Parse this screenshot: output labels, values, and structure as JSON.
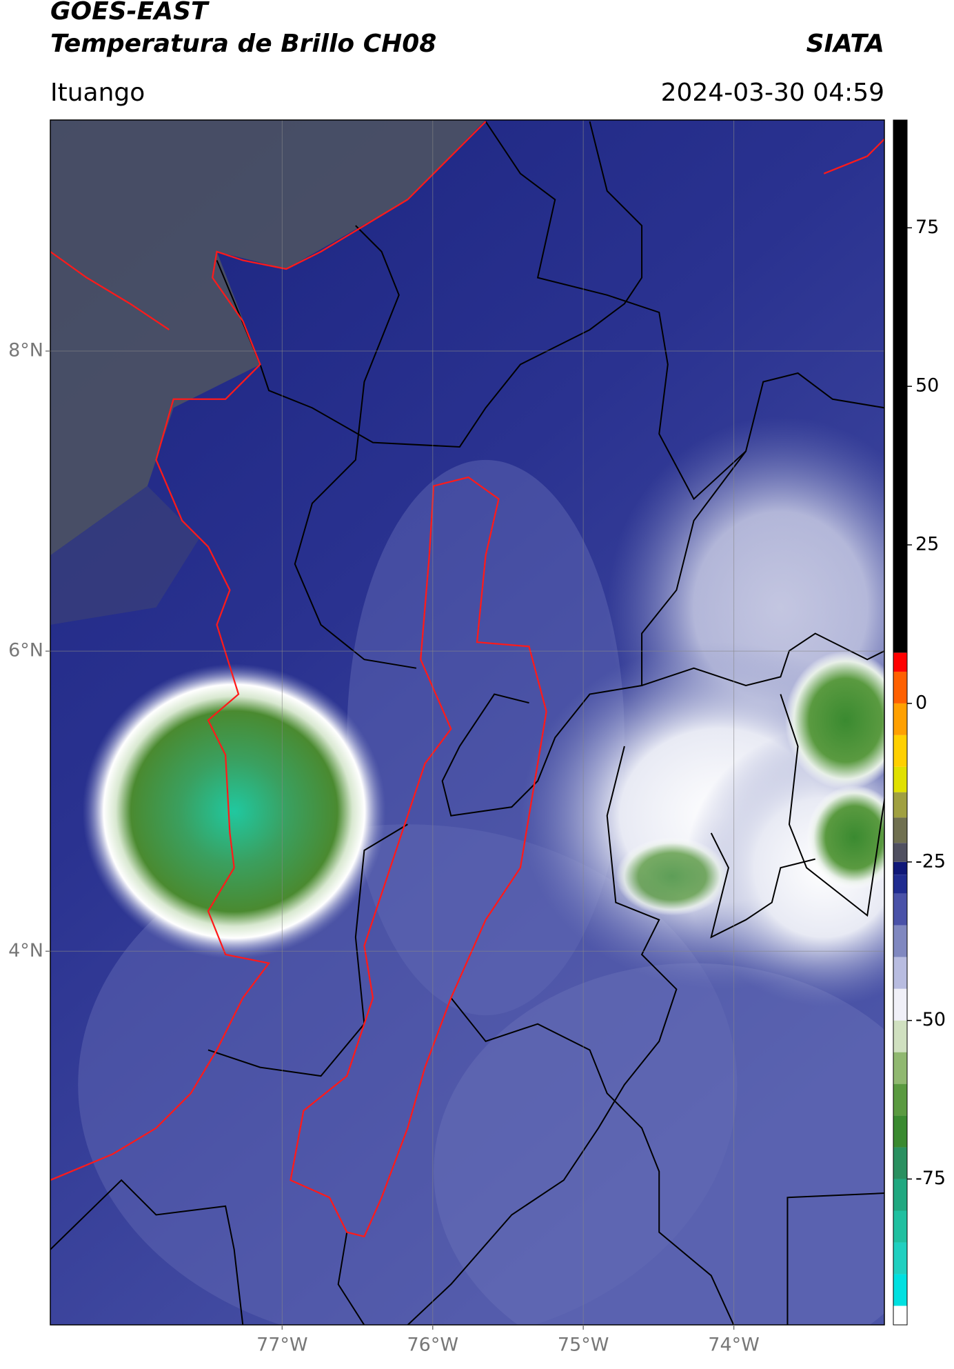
{
  "chart_data": {
    "type": "map",
    "title": "GOES-EAST",
    "subtitle": "Temperatura de Brillo CH08",
    "source": "SIATA",
    "location": "Ituango",
    "timestamp": "2024-03-30 04:59",
    "xlim": [
      -78.54,
      -73.0
    ],
    "ylim": [
      1.51,
      9.54
    ],
    "xticks": [
      {
        "value": -77,
        "label": "77°W"
      },
      {
        "value": -76,
        "label": "76°W"
      },
      {
        "value": -75,
        "label": "75°W"
      },
      {
        "value": -74,
        "label": "74°W"
      }
    ],
    "yticks": [
      {
        "value": 4,
        "label": "4°N"
      },
      {
        "value": 6,
        "label": "6°N"
      },
      {
        "value": 8,
        "label": "8°N"
      }
    ],
    "grid": true,
    "colorbar": {
      "lim": [
        -98,
        92
      ],
      "ticks": [
        -75,
        -50,
        -25,
        0,
        25,
        50,
        75
      ],
      "levels": [
        -98,
        -95,
        -90,
        -85,
        -80,
        -75,
        -70,
        -65,
        -60,
        -55,
        -50,
        -45,
        -40,
        -35,
        -30,
        -27,
        -25,
        -22,
        -18,
        -14,
        -10,
        -5,
        0,
        5,
        8,
        92
      ],
      "colors": [
        "#ffffff",
        "#00e0e0",
        "#20d0c0",
        "#20c0a0",
        "#20a880",
        "#2a9060",
        "#3a8a30",
        "#5a9a40",
        "#90b870",
        "#d0e0c0",
        "#f0f0f8",
        "#b8bce0",
        "#8088c0",
        "#4a52a8",
        "#202c90",
        "#101878",
        "#505060",
        "#707050",
        "#a0a040",
        "#e0e000",
        "#ffd000",
        "#ffa000",
        "#ff6000",
        "#ff0000",
        "#000000"
      ]
    }
  }
}
